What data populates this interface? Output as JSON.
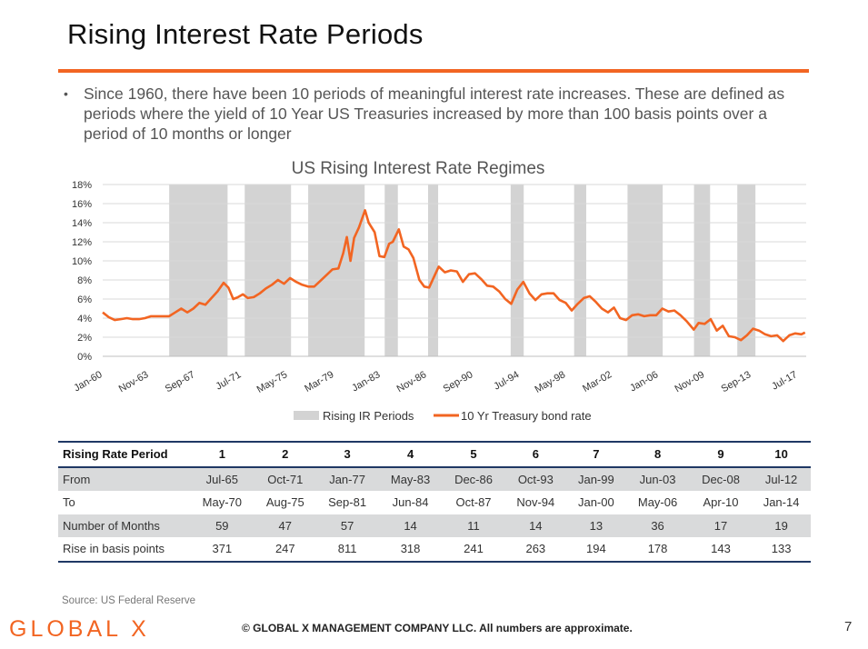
{
  "page": {
    "title": "Rising Interest Rate Periods",
    "bullet": "Since 1960, there have been 10 periods of meaningful interest rate increases. These are defined as periods where the yield of 10 Year US Treasuries increased by more than 100 basis points over a period of 10 months or longer",
    "source": "Source: US Federal Reserve",
    "logo": "GLOBAL X",
    "footer": "© GLOBAL X MANAGEMENT COMPANY LLC. All numbers are approximate.",
    "page_number": "7"
  },
  "colors": {
    "accent": "#f26522",
    "shade": "#d3d3d3",
    "table_rule": "#1f3864",
    "row_shade": "#d9dadb"
  },
  "chart_data": {
    "type": "line",
    "title": "US Rising Interest Rate Regimes",
    "xlabel": "",
    "ylabel": "",
    "ylim": [
      0,
      18
    ],
    "xlim": [
      1960.0,
      2018.2
    ],
    "yticks": [
      "0%",
      "2%",
      "4%",
      "6%",
      "8%",
      "10%",
      "12%",
      "14%",
      "16%",
      "18%"
    ],
    "xticks": [
      {
        "label": "Jan-60",
        "x": 1960.0
      },
      {
        "label": "Nov-63",
        "x": 1963.83
      },
      {
        "label": "Sep-67",
        "x": 1967.67
      },
      {
        "label": "Jul-71",
        "x": 1971.5
      },
      {
        "label": "May-75",
        "x": 1975.33
      },
      {
        "label": "Mar-79",
        "x": 1979.17
      },
      {
        "label": "Jan-83",
        "x": 1983.0
      },
      {
        "label": "Nov-86",
        "x": 1986.83
      },
      {
        "label": "Sep-90",
        "x": 1990.67
      },
      {
        "label": "Jul-94",
        "x": 1994.5
      },
      {
        "label": "May-98",
        "x": 1998.33
      },
      {
        "label": "Mar-02",
        "x": 2002.17
      },
      {
        "label": "Jan-06",
        "x": 2006.0
      },
      {
        "label": "Nov-09",
        "x": 2009.83
      },
      {
        "label": "Sep-13",
        "x": 2013.67
      },
      {
        "label": "Jul-17",
        "x": 2017.5
      }
    ],
    "grid": true,
    "legend": [
      {
        "label": "Rising IR Periods",
        "kind": "box"
      },
      {
        "label": "10 Yr Treasury bond rate",
        "kind": "line"
      }
    ],
    "legend_position": "bottom",
    "shaded_periods": [
      {
        "from": 1965.5,
        "to": 1970.33
      },
      {
        "from": 1971.75,
        "to": 1975.58
      },
      {
        "from": 1977.0,
        "to": 1981.67
      },
      {
        "from": 1983.33,
        "to": 1984.42
      },
      {
        "from": 1986.92,
        "to": 1987.75
      },
      {
        "from": 1993.75,
        "to": 1994.83
      },
      {
        "from": 1999.0,
        "to": 2000.0
      },
      {
        "from": 2003.42,
        "to": 2006.33
      },
      {
        "from": 2008.92,
        "to": 2010.25
      },
      {
        "from": 2012.5,
        "to": 2014.0
      }
    ],
    "series": [
      {
        "name": "10 Yr Treasury bond rate",
        "x": [
          1960.0,
          1960.5,
          1961.0,
          1961.5,
          1962.0,
          1962.5,
          1963.0,
          1963.5,
          1964.0,
          1964.5,
          1965.0,
          1965.5,
          1966.0,
          1966.5,
          1967.0,
          1967.5,
          1968.0,
          1968.5,
          1969.0,
          1969.5,
          1970.0,
          1970.4,
          1970.8,
          1971.2,
          1971.6,
          1972.0,
          1972.5,
          1973.0,
          1973.5,
          1974.0,
          1974.5,
          1975.0,
          1975.5,
          1976.0,
          1976.5,
          1977.0,
          1977.5,
          1978.0,
          1978.5,
          1979.0,
          1979.5,
          1979.9,
          1980.2,
          1980.5,
          1980.8,
          1981.2,
          1981.7,
          1982.0,
          1982.5,
          1982.9,
          1983.3,
          1983.7,
          1984.0,
          1984.5,
          1984.9,
          1985.3,
          1985.7,
          1986.2,
          1986.6,
          1987.0,
          1987.4,
          1987.8,
          1988.3,
          1988.8,
          1989.3,
          1989.8,
          1990.3,
          1990.8,
          1991.3,
          1991.8,
          1992.3,
          1992.8,
          1993.3,
          1993.8,
          1994.3,
          1994.8,
          1995.3,
          1995.8,
          1996.3,
          1996.8,
          1997.3,
          1997.8,
          1998.3,
          1998.8,
          1999.3,
          1999.8,
          2000.3,
          2000.8,
          2001.3,
          2001.8,
          2002.3,
          2002.8,
          2003.3,
          2003.8,
          2004.3,
          2004.8,
          2005.3,
          2005.8,
          2006.3,
          2006.8,
          2007.3,
          2007.8,
          2008.3,
          2008.9,
          2009.3,
          2009.8,
          2010.3,
          2010.8,
          2011.3,
          2011.8,
          2012.3,
          2012.8,
          2013.3,
          2013.8,
          2014.3,
          2014.8,
          2015.3,
          2015.8,
          2016.3,
          2016.8,
          2017.3,
          2017.8,
          2018.1
        ],
        "values": [
          4.6,
          4.1,
          3.8,
          3.9,
          4.0,
          3.9,
          3.9,
          4.0,
          4.2,
          4.2,
          4.2,
          4.2,
          4.6,
          5.0,
          4.6,
          5.0,
          5.6,
          5.4,
          6.1,
          6.8,
          7.7,
          7.2,
          6.0,
          6.2,
          6.5,
          6.1,
          6.2,
          6.6,
          7.1,
          7.5,
          8.0,
          7.6,
          8.2,
          7.8,
          7.5,
          7.3,
          7.3,
          7.9,
          8.5,
          9.1,
          9.2,
          10.8,
          12.5,
          10.0,
          12.4,
          13.5,
          15.3,
          14.0,
          13.0,
          10.5,
          10.4,
          11.8,
          12.0,
          13.3,
          11.5,
          11.2,
          10.3,
          8.0,
          7.3,
          7.2,
          8.3,
          9.4,
          8.8,
          9.0,
          8.9,
          7.8,
          8.6,
          8.7,
          8.1,
          7.4,
          7.3,
          6.8,
          6.0,
          5.5,
          7.0,
          7.8,
          6.6,
          5.9,
          6.5,
          6.6,
          6.6,
          5.9,
          5.6,
          4.8,
          5.5,
          6.1,
          6.3,
          5.7,
          5.0,
          4.6,
          5.1,
          4.0,
          3.8,
          4.3,
          4.4,
          4.2,
          4.3,
          4.3,
          5.0,
          4.7,
          4.8,
          4.3,
          3.7,
          2.8,
          3.5,
          3.4,
          3.9,
          2.7,
          3.2,
          2.1,
          2.0,
          1.7,
          2.2,
          2.9,
          2.7,
          2.3,
          2.1,
          2.2,
          1.6,
          2.2,
          2.4,
          2.3,
          2.5
        ]
      }
    ]
  },
  "table": {
    "header": [
      "Rising Rate Period",
      "1",
      "2",
      "3",
      "4",
      "5",
      "6",
      "7",
      "8",
      "9",
      "10"
    ],
    "rows": [
      [
        "From",
        "Jul-65",
        "Oct-71",
        "Jan-77",
        "May-83",
        "Dec-86",
        "Oct-93",
        "Jan-99",
        "Jun-03",
        "Dec-08",
        "Jul-12"
      ],
      [
        "To",
        "May-70",
        "Aug-75",
        "Sep-81",
        "Jun-84",
        "Oct-87",
        "Nov-94",
        "Jan-00",
        "May-06",
        "Apr-10",
        "Jan-14"
      ],
      [
        "Number of Months",
        "59",
        "47",
        "57",
        "14",
        "11",
        "14",
        "13",
        "36",
        "17",
        "19"
      ],
      [
        "Rise in basis points",
        "371",
        "247",
        "811",
        "318",
        "241",
        "263",
        "194",
        "178",
        "143",
        "133"
      ]
    ]
  }
}
